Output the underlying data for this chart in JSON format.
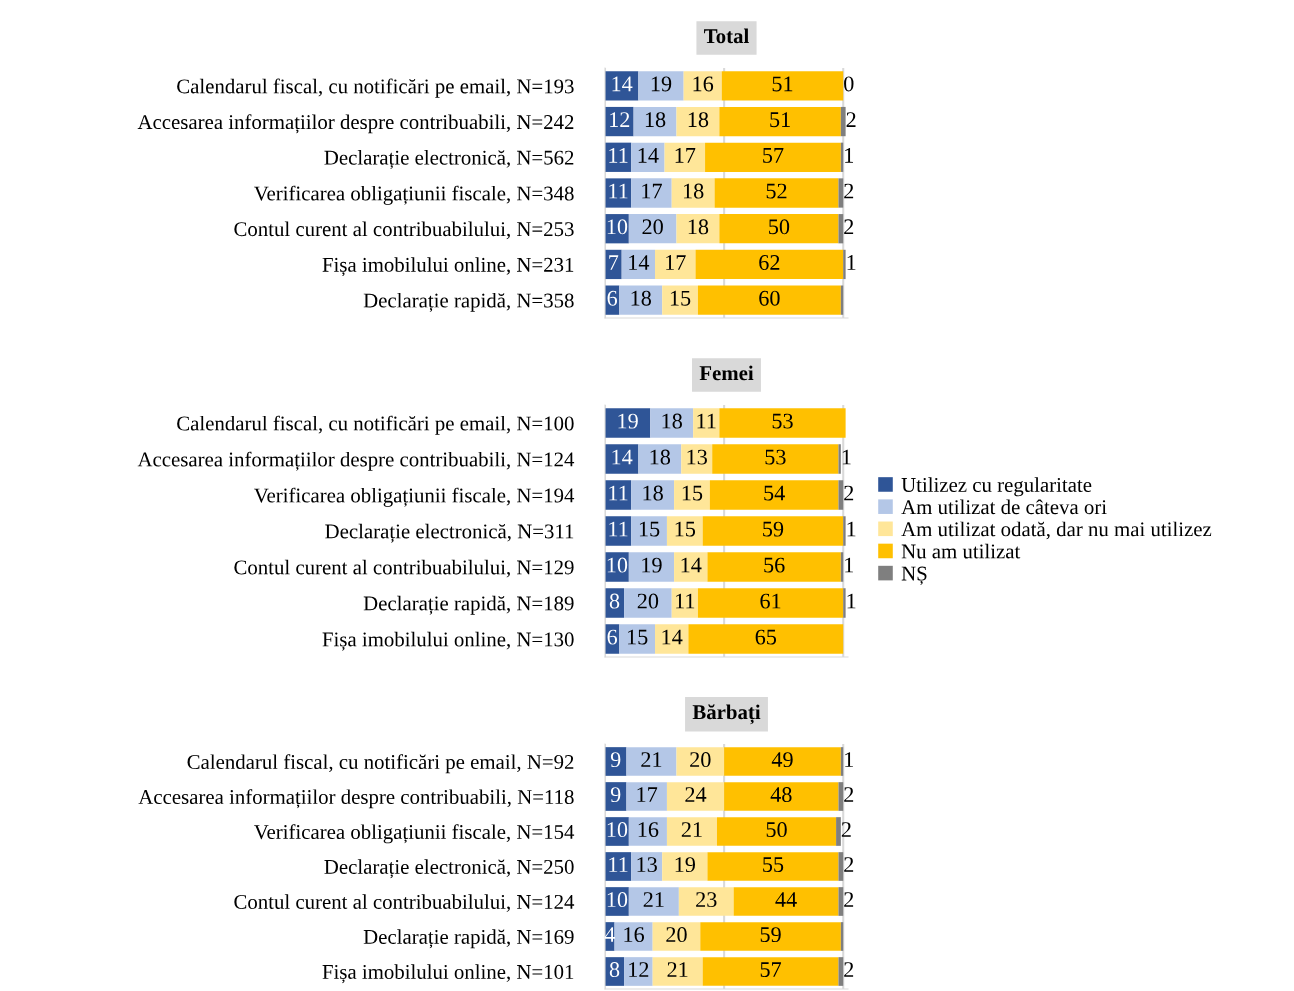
{
  "chart_data": [
    {
      "type": "bar",
      "orientation": "horizontal",
      "stacked": true,
      "title": "Total",
      "legend": false,
      "tick_labels": "y",
      "grid": "x",
      "xlim": [
        0,
        102
      ],
      "xticks": [
        {
          "value": 0,
          "label": null
        },
        {
          "value": 50,
          "label": null
        },
        {
          "value": 100,
          "label": null
        }
      ],
      "categories": [
        "Calendarul fiscal, cu notificări pe email, N=193",
        "Accesarea informațiilor despre contribuabili, N=242",
        "Declarație electronică, N=562",
        "Verificarea obligațiunii fiscale, N=348",
        "Contul curent al contribuabilului, N=253",
        "Fișa imobilului online, N=231",
        "Declarație rapidă, N=358"
      ],
      "series": [
        {
          "color": "#2f5597",
          "values": [
            14,
            12,
            11,
            11,
            10,
            7,
            6
          ],
          "value_labels": [
            "14",
            "12",
            "11",
            "11",
            "10",
            "7",
            "6"
          ]
        },
        {
          "color": "#b4c7e7",
          "values": [
            19,
            18,
            14,
            17,
            20,
            14,
            18
          ],
          "value_labels": [
            "19",
            "18",
            "14",
            "17",
            "20",
            "14",
            "18"
          ]
        },
        {
          "color": "#ffe699",
          "values": [
            16,
            18,
            17,
            18,
            18,
            17,
            15
          ],
          "value_labels": [
            "16",
            "18",
            "17",
            "18",
            "18",
            "17",
            "15"
          ]
        },
        {
          "color": "#ffc000",
          "values": [
            51,
            51,
            57,
            52,
            50,
            62,
            60
          ],
          "value_labels": [
            "51",
            "51",
            "57",
            "52",
            "50",
            "62",
            "60"
          ]
        },
        {
          "color": "#7f7f7f",
          "values": [
            0,
            2,
            1,
            2,
            2,
            1,
            1
          ],
          "value_labels": [
            "0",
            "2",
            "1",
            "2",
            "2",
            "1",
            null
          ]
        }
      ]
    },
    {
      "type": "bar",
      "orientation": "horizontal",
      "stacked": true,
      "title": "Femei",
      "legend": "right",
      "tick_labels": "y",
      "grid": "x",
      "xlim": [
        0,
        102
      ],
      "xticks": [
        {
          "value": 0,
          "label": null
        },
        {
          "value": 50,
          "label": null
        },
        {
          "value": 100,
          "label": null
        }
      ],
      "categories": [
        "Calendarul fiscal, cu notificări pe email, N=100",
        "Accesarea informațiilor despre contribuabili, N=124",
        "Verificarea obligațiunii fiscale, N=194",
        "Declarație electronică, N=311",
        "Contul curent al contribuabilului, N=129",
        "Declarație rapidă, N=189",
        "Fișa imobilului online, N=130"
      ],
      "series": [
        {
          "name": "Utilizez cu regularitate",
          "color": "#2f5597",
          "values": [
            19,
            14,
            11,
            11,
            10,
            8,
            6
          ],
          "value_labels": [
            "19",
            "14",
            "11",
            "11",
            "10",
            "8",
            "6"
          ]
        },
        {
          "name": "Am utilizat de câteva ori",
          "color": "#b4c7e7",
          "values": [
            18,
            18,
            18,
            15,
            19,
            20,
            15
          ],
          "value_labels": [
            "18",
            "18",
            "18",
            "15",
            "19",
            "20",
            "15"
          ]
        },
        {
          "name": "Am utilizat odată, dar nu mai utilizez",
          "color": "#ffe699",
          "values": [
            11,
            13,
            15,
            15,
            14,
            11,
            14
          ],
          "value_labels": [
            "11",
            "13",
            "15",
            "15",
            "14",
            "11",
            "14"
          ]
        },
        {
          "name": "Nu am utilizat",
          "color": "#ffc000",
          "values": [
            53,
            53,
            54,
            59,
            56,
            61,
            65
          ],
          "value_labels": [
            "53",
            "53",
            "54",
            "59",
            "56",
            "61",
            "65"
          ]
        },
        {
          "name": "NȘ",
          "color": "#7f7f7f",
          "values": [
            null,
            1,
            2,
            1,
            1,
            1,
            null
          ],
          "value_labels": [
            null,
            "1",
            "2",
            "1",
            "1",
            "1",
            null
          ]
        }
      ]
    },
    {
      "type": "bar",
      "orientation": "horizontal",
      "stacked": true,
      "title": "Bărbați",
      "legend": false,
      "tick_labels": "y",
      "grid": "x",
      "xlim": [
        0,
        102
      ],
      "xticks": [
        {
          "value": 0,
          "label": null
        },
        {
          "value": 50,
          "label": null
        },
        {
          "value": 100,
          "label": null
        }
      ],
      "categories": [
        "Calendarul fiscal, cu notificări pe email, N=92",
        "Accesarea informațiilor despre contribuabili, N=118",
        "Verificarea obligațiunii fiscale, N=154",
        "Declarație electronică, N=250",
        "Contul curent al contribuabilului, N=124",
        "Declarație rapidă, N=169",
        "Fișa imobilului online, N=101"
      ],
      "series": [
        {
          "color": "#2f5597",
          "values": [
            9,
            9,
            10,
            11,
            10,
            4,
            8
          ],
          "value_labels": [
            "9",
            "9",
            "10",
            "11",
            "10",
            "4",
            "8"
          ]
        },
        {
          "color": "#b4c7e7",
          "values": [
            21,
            17,
            16,
            13,
            21,
            16,
            12
          ],
          "value_labels": [
            "21",
            "17",
            "16",
            "13",
            "21",
            "16",
            "12"
          ]
        },
        {
          "color": "#ffe699",
          "values": [
            20,
            24,
            21,
            19,
            23,
            20,
            21
          ],
          "value_labels": [
            "20",
            "24",
            "21",
            "19",
            "23",
            "20",
            "21"
          ]
        },
        {
          "color": "#ffc000",
          "values": [
            49,
            48,
            50,
            55,
            44,
            59,
            57
          ],
          "value_labels": [
            "49",
            "48",
            "50",
            "55",
            "44",
            "59",
            "57"
          ]
        },
        {
          "color": "#7f7f7f",
          "values": [
            1,
            2,
            2,
            2,
            2,
            1,
            2
          ],
          "value_labels": [
            "1",
            "2",
            "2",
            "2",
            "2",
            null,
            "2"
          ]
        }
      ]
    }
  ]
}
